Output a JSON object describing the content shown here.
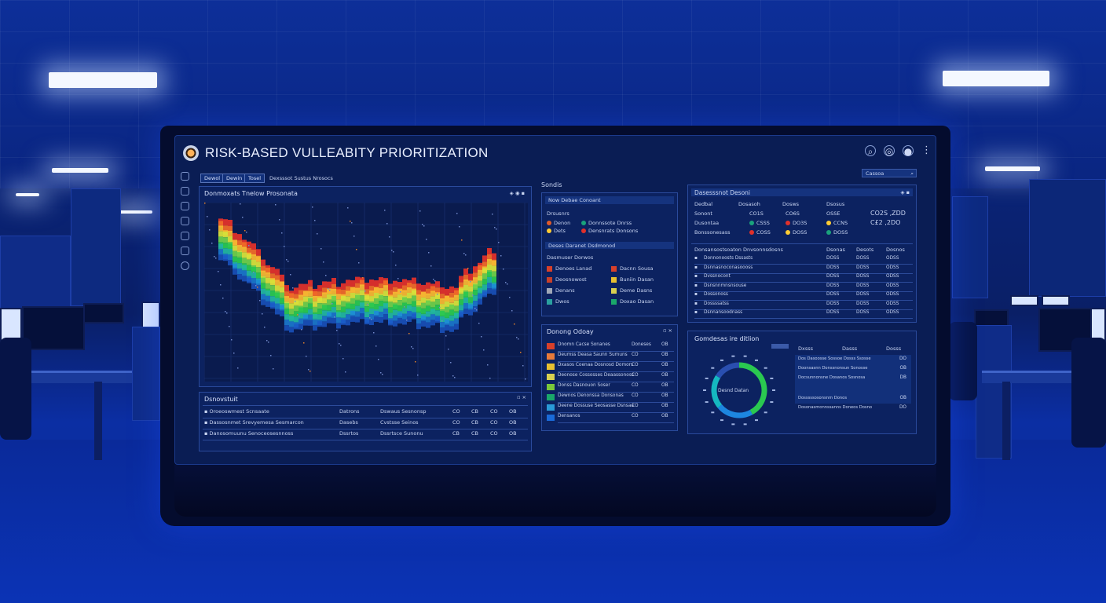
{
  "app": {
    "title": "RISK-BASED VULLEABITY PRIORITIZATION",
    "nav_buttons": [
      "Dewol",
      "Dewin",
      "Tosel"
    ],
    "nav_caption": "Dexsssot Sustus Nrosocs"
  },
  "heatmap_panel": {
    "title": "Donmoxats Tnelow Prosonata"
  },
  "bottom_left_panel": {
    "title": "Dsnovstuit",
    "rows": [
      {
        "label": "Oroeoswmest Scnsaate",
        "c1": "Datrons",
        "c2": "Dswaus Sesnonsp",
        "v": [
          "CO",
          "CB",
          "CO",
          "OB"
        ]
      },
      {
        "label": "Dassosnmet Srevyemesa Sesmarcon",
        "c1": "Dasebs",
        "c2": "Cvstsse Seinos",
        "v": [
          "CO",
          "CB",
          "CO",
          "OB"
        ]
      },
      {
        "label": "Danosomuunu Senoceosesnnoss",
        "c1": "Dssrtos",
        "c2": "Dssrtsce Sunonu",
        "v": [
          "CB",
          "CB",
          "CO",
          "OB"
        ]
      }
    ]
  },
  "middle_top": {
    "heading": "Sondis",
    "title": "Now Debae Conoant",
    "subhead": "Drsusnrs",
    "legend": [
      {
        "label": "Denon",
        "label2": "Donnssote Dnrss",
        "color": "#e05a2a",
        "color2": "#1aa27c"
      },
      {
        "label": "Dets",
        "label2": "Densnrats Donsons",
        "color": "#ffcc33",
        "color2": "#e0302a"
      }
    ],
    "subtitle": "Deses Daranet Dsdmonod",
    "subhead2": "Dasmuser Dorwos",
    "grid": [
      {
        "a": "Denoes Lanad",
        "ca": "#d8402a",
        "b": "Dacnn Sousa",
        "cb": "#d8402a"
      },
      {
        "a": "Deosnowost",
        "ca": "#c8402a",
        "b": "Buniin Dasan",
        "cb": "#e8c030"
      },
      {
        "a": "Denans",
        "ca": "#a0a8b8",
        "b": "Deme Dasns",
        "cb": "#d8d050"
      },
      {
        "a": "Dwos",
        "ca": "#2aa0a0",
        "b": "Doxao Dasan",
        "cb": "#1aa86a"
      }
    ]
  },
  "middle_bottom": {
    "title": "Donong Odoay",
    "rows": [
      {
        "label": "Dnomn Cacse Sonanes",
        "color": "#d8402a",
        "code": "Doneses",
        "v": "OB"
      },
      {
        "label": "Deumss Deasa Saunn Sumuns",
        "color": "#e87a3a",
        "code": "CO",
        "v": "OB"
      },
      {
        "label": "Dxasos Coenaa Dosnosd Domors",
        "color": "#e8c030",
        "code": "CO",
        "v": "OB"
      },
      {
        "label": "Deonose Cossosses Deaassonoss",
        "color": "#d8d050",
        "code": "CO",
        "v": "OB"
      },
      {
        "label": "Donss Dasnouon Soser",
        "color": "#7ac83a",
        "code": "CO",
        "v": "OB"
      },
      {
        "label": "Dewnos Denonssa Donsonas",
        "color": "#1aa86a",
        "code": "CO",
        "v": "OB"
      },
      {
        "label": "Deene Dossuse Seosasse Dsnsaa",
        "color": "#2a9ad8",
        "code": "CO",
        "v": "OB"
      },
      {
        "label": "Densanos",
        "color": "#1a6ad8",
        "code": "CO",
        "v": "OB"
      }
    ]
  },
  "right_top": {
    "title": "Dasesssnot Desoni",
    "search_label": "Cassoa",
    "header_cols": [
      "Dedbal",
      "Dosasoh",
      "Dosws",
      "Dsosus"
    ],
    "stats": [
      {
        "label": "Sonont",
        "a": "CO1S",
        "b": "CO6S",
        "c": "OSSE",
        "d": "CO2S ,ZDD"
      },
      {
        "label": "Dusontaa",
        "a": "CSSS",
        "b": "DO3S",
        "c": "CCNS",
        "d": "C£2 ,2DO"
      },
      {
        "label": "Bonssonesass",
        "a": "COSS",
        "b": "DOSS",
        "c": "DOSS",
        "d": ""
      }
    ],
    "table_title": "Donsansostsoaton Dnvsonnsdosns",
    "table_cols": [
      "Dsonas",
      "Desots",
      "Dosnos"
    ],
    "table_rows": [
      {
        "label": "Donnonoosts Dssasts",
        "a": "DOSS",
        "b": "DOSS",
        "c": "ODSS"
      },
      {
        "label": "Dsnnasnoconasoooss",
        "a": "DOSS",
        "b": "DOSS",
        "c": "ODSS"
      },
      {
        "label": "Dvssnocont",
        "a": "DOSS",
        "b": "DOSS",
        "c": "ODSS"
      },
      {
        "label": "Dsnsnnmnsnsouse",
        "a": "DOSS",
        "b": "DOSS",
        "c": "ODSS"
      },
      {
        "label": "Dossonoss",
        "a": "DOSS",
        "b": "DOSS",
        "c": "ODSS"
      },
      {
        "label": "Dossssatss",
        "a": "DOSS",
        "b": "DOSS",
        "c": "ODSS"
      },
      {
        "label": "Dsnnansoodnass",
        "a": "DOSS",
        "b": "DOSS",
        "c": "ODSS"
      }
    ]
  },
  "right_bottom": {
    "title": "Gomdesas ire ditlion",
    "donut_label": "Desnd Datan",
    "cols": [
      "Dxsss",
      "Dasss",
      "Dosss"
    ],
    "rows": [
      {
        "label": "Dos Dasoosse Sossoe Dosss Ssosse",
        "v": "DO"
      },
      {
        "label": "Doonsasnn Donssnonsun Sonosse",
        "v": "OB"
      },
      {
        "label": "Docsunnonsne Dosanos Sosnosa",
        "v": "DB"
      },
      {
        "label": "Dosssssosonsnm Donos",
        "v": "OB"
      },
      {
        "label": "Dosonasmonnssanns Doneos Dosno",
        "v": "DO"
      }
    ]
  },
  "colors": {
    "accent": "#1f6bff",
    "panel": "#0c2260",
    "heat_red": "#e0302a",
    "heat_green": "#2ac850"
  },
  "icons": [
    "logo-icon",
    "chat-icon",
    "bell-icon",
    "user-icon",
    "more-icon"
  ]
}
